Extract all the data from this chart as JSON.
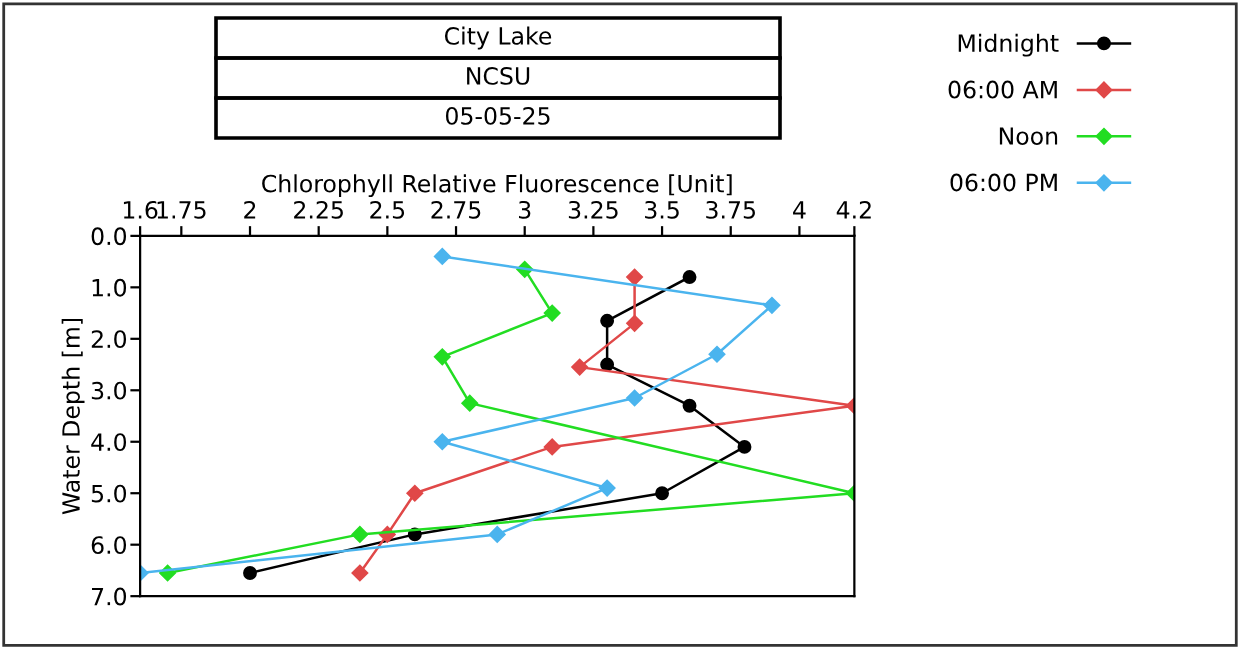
{
  "chart_data": {
    "type": "line",
    "title": "City Lake",
    "subtitle": "NCSU",
    "annotations": [
      "05-05-25"
    ],
    "xlabel": "Chlorophyll Relative Fluorescence [Unit]",
    "ylabel": "Water Depth [m]",
    "xlim": [
      1.6,
      4.2
    ],
    "xticks": [
      1.6,
      1.75,
      2,
      2.25,
      2.5,
      2.75,
      3,
      3.25,
      3.5,
      3.75,
      4,
      4.2
    ],
    "ylim": [
      7,
      0
    ],
    "yticks": [
      {
        "value": 0,
        "label": "0.0"
      },
      {
        "value": 1,
        "label": "1.0"
      },
      {
        "value": 2,
        "label": "2.0"
      },
      {
        "value": 3,
        "label": "3.0"
      },
      {
        "value": 4,
        "label": "4.0"
      },
      {
        "value": 5,
        "label": "5.0"
      },
      {
        "value": 6,
        "label": "6.0"
      },
      {
        "value": 7,
        "label": "7.0"
      }
    ],
    "grid": false,
    "legend": "right",
    "marker": "circle",
    "line_style": "solid",
    "series": [
      {
        "name": "Midnight",
        "color": "#000000",
        "x": [
          3.6,
          3.3,
          3.3,
          3.6,
          3.8,
          3.5,
          2.6,
          2.0
        ],
        "values": [
          0.8,
          1.65,
          2.5,
          3.3,
          4.1,
          5.0,
          5.8,
          6.55
        ]
      },
      {
        "name": "06:00 AM",
        "color": "#e04848",
        "marker": "diamond",
        "x": [
          3.4,
          3.4,
          3.2,
          4.2,
          3.1,
          2.6,
          2.5,
          2.4
        ],
        "values": [
          0.8,
          1.7,
          2.55,
          3.3,
          4.1,
          5.0,
          5.8,
          6.55
        ]
      },
      {
        "name": "Noon",
        "color": "#22dd22",
        "marker": "diamond",
        "x": [
          3.0,
          3.1,
          2.7,
          2.8,
          4.2,
          2.4,
          1.7
        ],
        "values": [
          0.65,
          1.5,
          2.35,
          3.25,
          5.0,
          5.8,
          6.55
        ]
      },
      {
        "name": "06:00 PM",
        "color": "#4ab4ee",
        "marker": "diamond",
        "x": [
          2.7,
          3.9,
          3.7,
          3.4,
          2.7,
          3.3,
          2.9,
          1.6
        ],
        "values": [
          0.4,
          1.35,
          2.3,
          3.15,
          4.0,
          4.9,
          5.8,
          6.55
        ]
      }
    ]
  }
}
